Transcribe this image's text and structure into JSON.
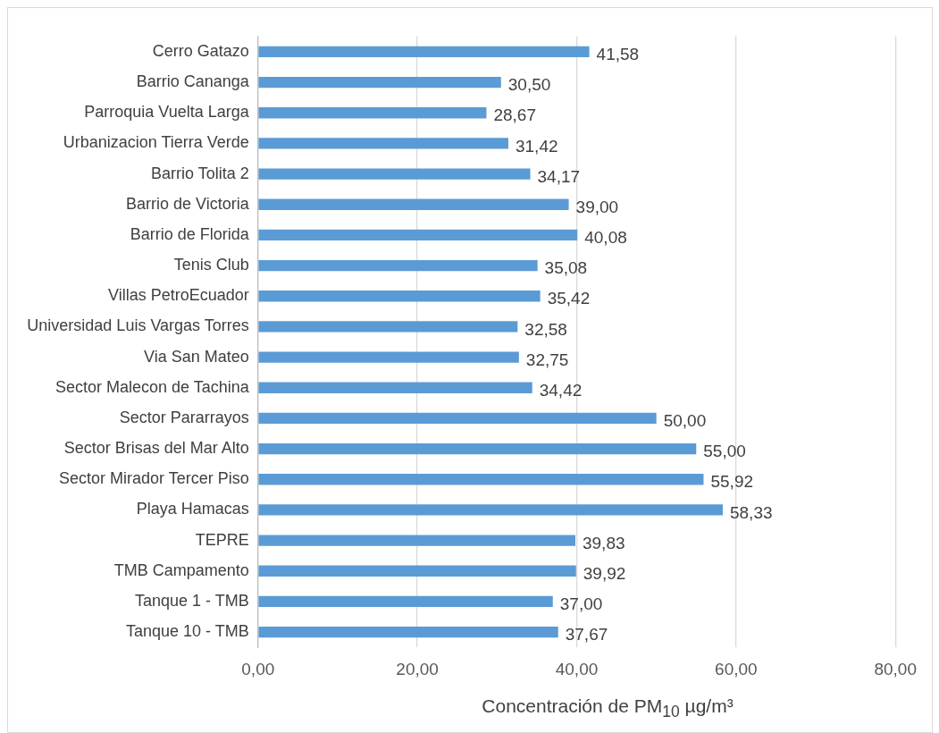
{
  "chart_data": {
    "type": "bar",
    "orientation": "horizontal",
    "xlabel": "Concentración de PM$_{10}$ µg/m³",
    "categories": [
      "Cerro Gatazo",
      "Barrio Cananga",
      "Parroquia Vuelta Larga",
      "Urbanizacion Tierra Verde",
      "Barrio Tolita 2",
      "Barrio de Victoria",
      "Barrio de Florida",
      "Tenis Club",
      "Villas PetroEcuador",
      "Universidad Luis Vargas Torres",
      "Via San Mateo",
      "Sector Malecon de Tachina",
      "Sector Pararrayos",
      "Sector Brisas del Mar Alto",
      "Sector Mirador Tercer Piso",
      "Playa Hamacas",
      "TEPRE",
      "TMB Campamento",
      "Tanque 1 - TMB",
      "Tanque 10 - TMB"
    ],
    "values": [
      41.58,
      30.5,
      28.67,
      31.42,
      34.17,
      39.0,
      40.08,
      35.08,
      35.42,
      32.58,
      32.75,
      34.42,
      50.0,
      55.0,
      55.92,
      58.33,
      39.83,
      39.92,
      37.0,
      37.67
    ],
    "value_labels": [
      "41,58",
      "30,50",
      "28,67",
      "31,42",
      "34,17",
      "39,00",
      "40,08",
      "35,08",
      "35,42",
      "32,58",
      "32,75",
      "34,42",
      "50,00",
      "55,00",
      "55,92",
      "58,33",
      "39,83",
      "39,92",
      "37,00",
      "37,67"
    ],
    "color": "#5b9bd5",
    "xlim": [
      0,
      80
    ],
    "xticks": [
      {
        "value": 0,
        "label": "0,00"
      },
      {
        "value": 20,
        "label": "20,00"
      },
      {
        "value": 40,
        "label": "40,00"
      },
      {
        "value": 60,
        "label": "60,00"
      },
      {
        "value": 80,
        "label": "80,00"
      }
    ],
    "grid": "x",
    "legend": false
  }
}
